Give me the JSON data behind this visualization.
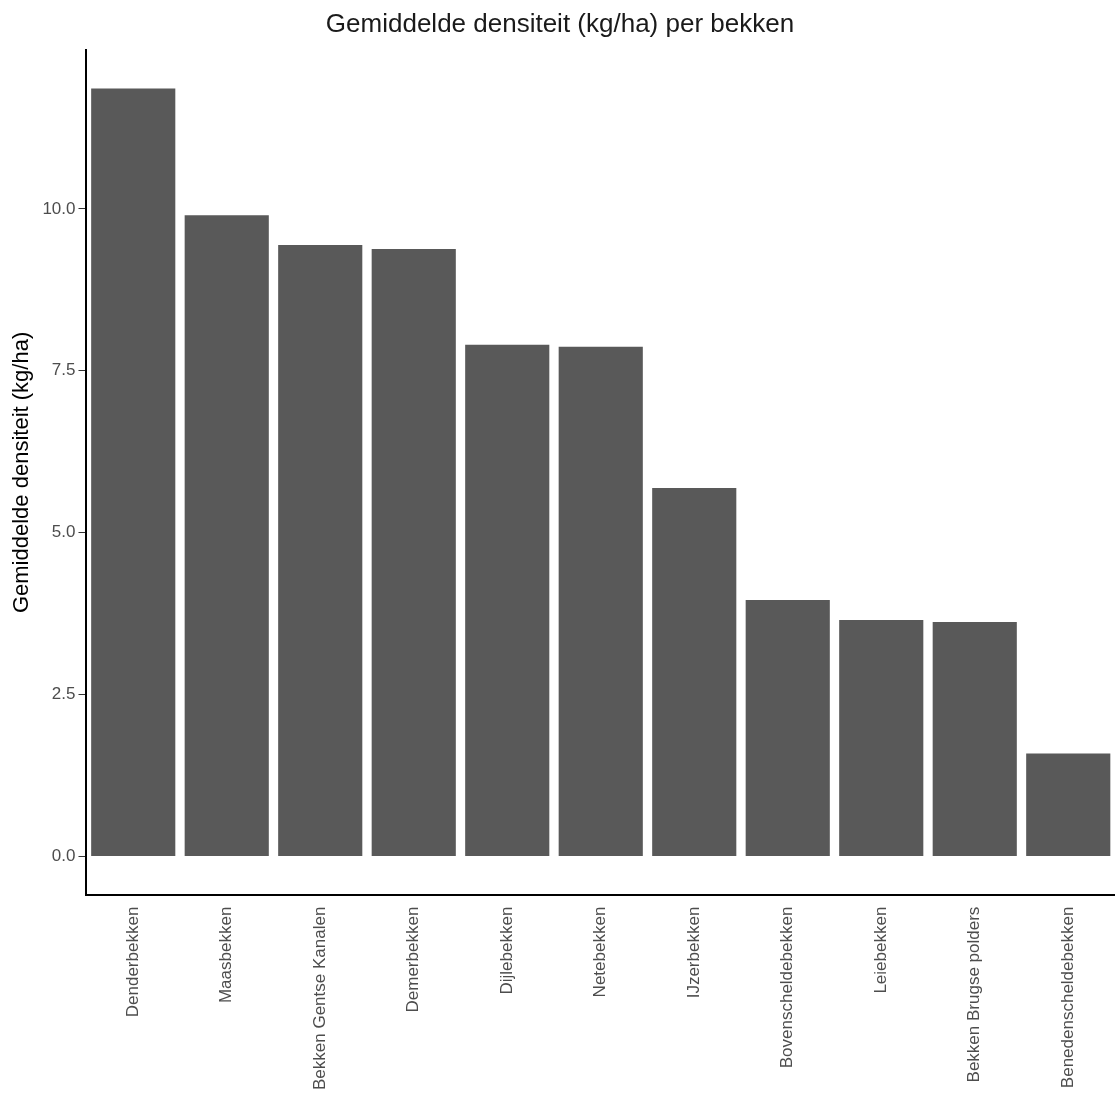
{
  "chart_data": {
    "type": "bar",
    "title": "Gemiddelde densiteit (kg/ha) per bekken",
    "ylabel": "Gemiddelde densiteit (kg/ha)",
    "categories": [
      "Denderbekken",
      "Maasbekken",
      "Bekken Gentse Kanalen",
      "Demerbekken",
      "Dijlebekken",
      "Netebekken",
      "IJzerbekken",
      "Bovenscheldebekken",
      "Leiebekken",
      "Bekken Brugse polders",
      "Benedenscheldebekken"
    ],
    "values": [
      11.86,
      9.9,
      9.44,
      9.38,
      7.9,
      7.87,
      5.69,
      3.96,
      3.65,
      3.62,
      1.59
    ],
    "color": "#595959",
    "ylim": [
      -0.59,
      12.45
    ],
    "yticks": [
      {
        "value": 0,
        "label": "0.0"
      },
      {
        "value": 2.5,
        "label": "2.5"
      },
      {
        "value": 5,
        "label": "5.0"
      },
      {
        "value": 7.5,
        "label": "7.5"
      },
      {
        "value": 10,
        "label": "10.0"
      }
    ],
    "grid": false,
    "legend": false
  }
}
